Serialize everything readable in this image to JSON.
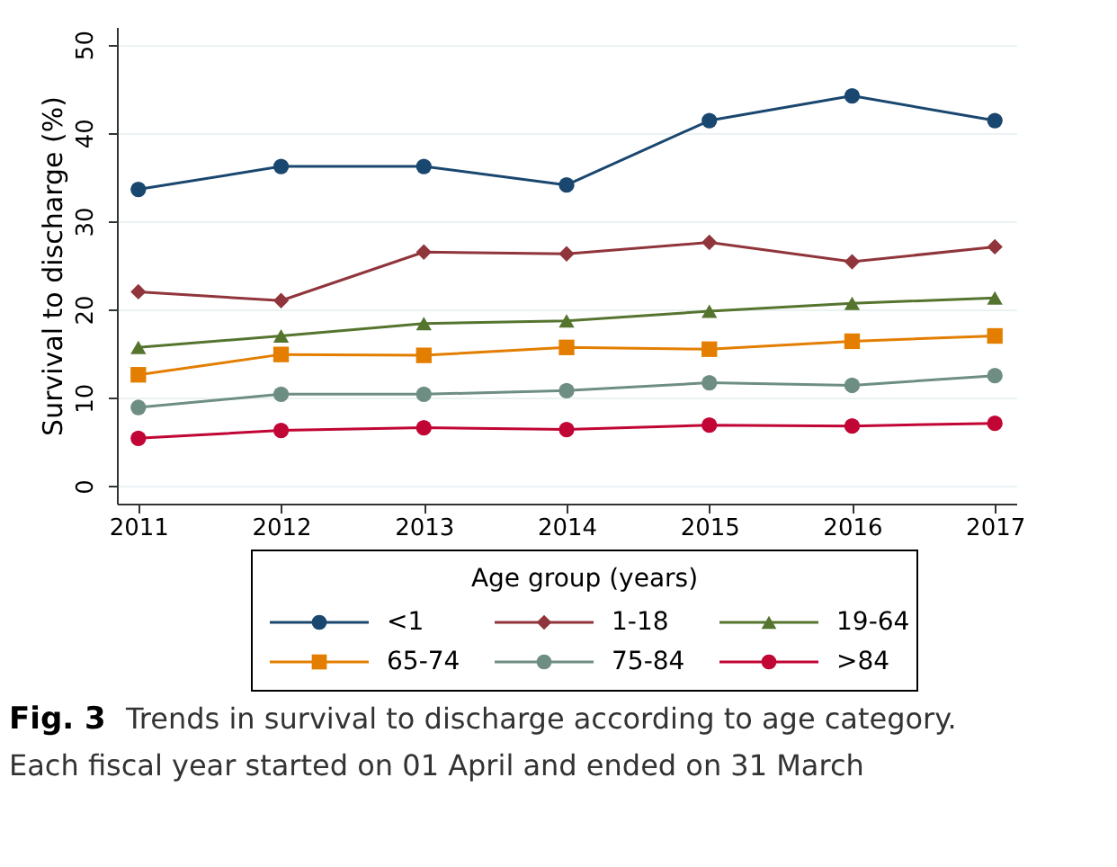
{
  "chart_data": {
    "type": "line",
    "ylabel": "Survival to discharge (%)",
    "legend_title": "Age group (years)",
    "legend": "bottom",
    "grid": "y",
    "x": [
      2011,
      2012,
      2013,
      2014,
      2015,
      2016,
      2017
    ],
    "xlim": [
      2010.85,
      2017.15
    ],
    "xticks": [
      2011,
      2012,
      2013,
      2014,
      2015,
      2016,
      2017
    ],
    "ylim": [
      -2,
      52
    ],
    "yticks": [
      0,
      10,
      20,
      30,
      40,
      50
    ],
    "series": [
      {
        "name": "<1",
        "color": "#1a476f",
        "marker": "circle",
        "values": [
          33.6,
          36.2,
          36.2,
          34.1,
          41.4,
          44.2,
          41.4
        ]
      },
      {
        "name": "1-18",
        "color": "#90353b",
        "marker": "diamond",
        "values": [
          22.0,
          21.0,
          26.5,
          26.3,
          27.6,
          25.4,
          27.1
        ]
      },
      {
        "name": "19-64",
        "color": "#55752f",
        "marker": "triangle",
        "values": [
          15.7,
          17.0,
          18.4,
          18.7,
          19.8,
          20.7,
          21.3
        ]
      },
      {
        "name": "65-74",
        "color": "#e37e00",
        "marker": "square",
        "values": [
          12.6,
          14.9,
          14.8,
          15.7,
          15.5,
          16.4,
          17.0
        ]
      },
      {
        "name": "75-84",
        "color": "#6e8e84",
        "marker": "circle",
        "values": [
          8.9,
          10.4,
          10.4,
          10.8,
          11.7,
          11.4,
          12.5
        ]
      },
      {
        "name": ">84",
        "color": "#c10534",
        "marker": "circle",
        "values": [
          5.4,
          6.3,
          6.6,
          6.4,
          6.9,
          6.8,
          7.1
        ]
      }
    ],
    "annotations": [
      "Fig. 3",
      "Trends in survival to discharge according to age category.",
      "Each fiscal year started on 01 April and ended on 31 March"
    ]
  }
}
